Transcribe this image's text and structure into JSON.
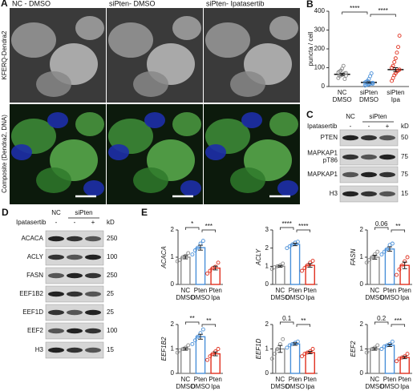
{
  "figure": {
    "panel_labels": [
      "A",
      "B",
      "C",
      "D",
      "E"
    ],
    "panel_a": {
      "columns": [
        "NC - DMSO",
        "siPten- DMSO",
        "siPten- Ipatasertib"
      ],
      "rows": [
        "KFERQ-Dendra2",
        "Composite (Dendra2, DNA)"
      ]
    },
    "panel_c": {
      "treatment": "Ipatasertib",
      "groups": [
        "NC",
        "siPten"
      ],
      "signs": [
        "-",
        "-",
        "+"
      ],
      "unit": "kD",
      "rows": [
        {
          "protein": [
            "PTEN"
          ],
          "kd": 50
        },
        {
          "protein": [
            "MAPKAP1",
            "pT86"
          ],
          "kd": 75
        },
        {
          "protein": [
            "MAPKAP1"
          ],
          "kd": 75
        },
        {
          "protein": [
            "H3"
          ],
          "kd": 15
        }
      ]
    },
    "panel_d": {
      "treatment": "Ipatasertib",
      "groups": [
        "NC",
        "siPten"
      ],
      "signs": [
        "-",
        "-",
        "+"
      ],
      "unit": "kD",
      "rows": [
        {
          "protein": [
            "ACACA"
          ],
          "kd": 250
        },
        {
          "protein": [
            "ACLY"
          ],
          "kd": 100
        },
        {
          "protein": [
            "FASN"
          ],
          "kd": 250
        },
        {
          "protein": [
            "EEF1B2"
          ],
          "kd": 25
        },
        {
          "protein": [
            "EEF1D"
          ],
          "kd": 25
        },
        {
          "protein": [
            "EEF2"
          ],
          "kd": 100
        },
        {
          "protein": [
            "H3"
          ],
          "kd": 15
        }
      ]
    }
  },
  "chart_data": [
    {
      "type": "dot",
      "y_label": "puncta / cell",
      "categories": [
        [
          "NC",
          "DMSO"
        ],
        [
          "siPten",
          "DMSO"
        ],
        [
          "siPten",
          "Ipa"
        ]
      ],
      "colors": [
        "#8c8c8c",
        "#4a90d9",
        "#e0301e"
      ],
      "values": [
        65,
        22,
        90
      ],
      "errors": [
        5,
        4,
        10
      ],
      "points": [
        [
          45,
          55,
          60,
          62,
          65,
          70,
          72,
          75,
          80,
          85,
          95,
          110,
          40,
          58
        ],
        [
          5,
          8,
          10,
          12,
          15,
          18,
          20,
          22,
          25,
          30,
          40,
          55,
          70,
          15
        ],
        [
          30,
          45,
          60,
          70,
          80,
          85,
          90,
          100,
          110,
          130,
          150,
          180,
          210,
          270
        ]
      ],
      "ylim": [
        0,
        400
      ],
      "yticks": [
        0,
        100,
        200,
        300,
        400
      ],
      "annotations": [
        "****",
        "****"
      ]
    },
    {
      "type": "bar",
      "y_label": "ACACA",
      "categories": [
        [
          "NC",
          "DMSO"
        ],
        [
          "Pten",
          "DMSO"
        ],
        [
          "Pten",
          "Ipa"
        ]
      ],
      "colors": [
        "#8c8c8c",
        "#4a90d9",
        "#e0301e"
      ],
      "values": [
        1.0,
        1.35,
        0.6
      ],
      "errors": [
        0.06,
        0.09,
        0.07
      ],
      "points": [
        [
          0.85,
          0.9,
          1.0,
          1.05,
          1.15
        ],
        [
          1.1,
          1.25,
          1.35,
          1.5,
          1.6
        ],
        [
          0.4,
          0.5,
          0.6,
          0.65,
          0.8
        ]
      ],
      "ylim": [
        0,
        2
      ],
      "yticks": [
        0,
        1,
        2
      ],
      "annotations": [
        "*",
        "***"
      ]
    },
    {
      "type": "bar",
      "y_label": "ACLY",
      "categories": [
        [
          "NC",
          "DMSO"
        ],
        [
          "Pten",
          "DMSO"
        ],
        [
          "Pten",
          "Ipa"
        ]
      ],
      "colors": [
        "#8c8c8c",
        "#4a90d9",
        "#e0301e"
      ],
      "values": [
        1.0,
        2.2,
        1.05
      ],
      "errors": [
        0.05,
        0.07,
        0.1
      ],
      "points": [
        [
          0.85,
          0.95,
          1.0,
          1.05,
          1.15
        ],
        [
          2.0,
          2.1,
          2.2,
          2.3,
          2.35
        ],
        [
          0.75,
          0.9,
          1.05,
          1.2,
          1.3
        ]
      ],
      "ylim": [
        0,
        3
      ],
      "yticks": [
        0,
        1,
        2,
        3
      ],
      "annotations": [
        "****",
        "****"
      ]
    },
    {
      "type": "bar",
      "y_label": "FASN",
      "categories": [
        [
          "NC",
          "DMSO"
        ],
        [
          "Pten",
          "DMSO"
        ],
        [
          "Pten",
          "Ipa"
        ]
      ],
      "colors": [
        "#8c8c8c",
        "#4a90d9",
        "#e0301e"
      ],
      "values": [
        1.0,
        1.3,
        0.7
      ],
      "errors": [
        0.07,
        0.08,
        0.12
      ],
      "points": [
        [
          0.8,
          0.9,
          1.0,
          1.1,
          1.2
        ],
        [
          1.1,
          1.2,
          1.3,
          1.45,
          1.5
        ],
        [
          0.35,
          0.55,
          0.7,
          0.85,
          1.0
        ]
      ],
      "ylim": [
        0,
        2
      ],
      "yticks": [
        0,
        1,
        2
      ],
      "annotations": [
        "0.06",
        "**"
      ]
    },
    {
      "type": "bar",
      "y_label": "EEF1B2",
      "categories": [
        [
          "NC",
          "DMSO"
        ],
        [
          "Pten",
          "DMSO"
        ],
        [
          "Pten",
          "Ipa"
        ]
      ],
      "colors": [
        "#8c8c8c",
        "#4a90d9",
        "#e0301e"
      ],
      "values": [
        1.0,
        1.5,
        0.8
      ],
      "errors": [
        0.05,
        0.1,
        0.08
      ],
      "points": [
        [
          0.85,
          0.95,
          1.0,
          1.05,
          1.15
        ],
        [
          1.2,
          1.35,
          1.5,
          1.65,
          1.8
        ],
        [
          0.55,
          0.7,
          0.8,
          0.9,
          1.0
        ]
      ],
      "ylim": [
        0,
        2
      ],
      "yticks": [
        0,
        1,
        2
      ],
      "annotations": [
        "**",
        "**"
      ]
    },
    {
      "type": "bar",
      "y_label": "EEF1D",
      "categories": [
        [
          "NC",
          "DMSO"
        ],
        [
          "Pten",
          "DMSO"
        ],
        [
          "Pten",
          "Ipa"
        ]
      ],
      "colors": [
        "#8c8c8c",
        "#4a90d9",
        "#e0301e"
      ],
      "values": [
        1.0,
        1.2,
        0.85
      ],
      "errors": [
        0.14,
        0.05,
        0.05
      ],
      "points": [
        [
          0.6,
          0.8,
          1.0,
          1.2,
          1.4
        ],
        [
          1.05,
          1.15,
          1.2,
          1.25,
          1.3
        ],
        [
          0.7,
          0.8,
          0.85,
          0.9,
          1.0
        ]
      ],
      "ylim": [
        0,
        2
      ],
      "yticks": [
        0,
        1,
        2
      ],
      "annotations": [
        "0.1",
        "**"
      ]
    },
    {
      "type": "bar",
      "y_label": "EEF2",
      "categories": [
        [
          "NC",
          "DMSO"
        ],
        [
          "Pten",
          "DMSO"
        ],
        [
          "Pten",
          "Ipa"
        ]
      ],
      "colors": [
        "#8c8c8c",
        "#4a90d9",
        "#e0301e"
      ],
      "values": [
        1.0,
        1.15,
        0.65
      ],
      "errors": [
        0.05,
        0.05,
        0.05
      ],
      "points": [
        [
          0.85,
          0.95,
          1.0,
          1.05,
          1.15
        ],
        [
          1.0,
          1.1,
          1.15,
          1.2,
          1.3
        ],
        [
          0.5,
          0.6,
          0.65,
          0.7,
          0.8
        ]
      ],
      "ylim": [
        0,
        2
      ],
      "yticks": [
        0,
        1,
        2
      ],
      "annotations": [
        "0.2",
        "***"
      ]
    }
  ]
}
